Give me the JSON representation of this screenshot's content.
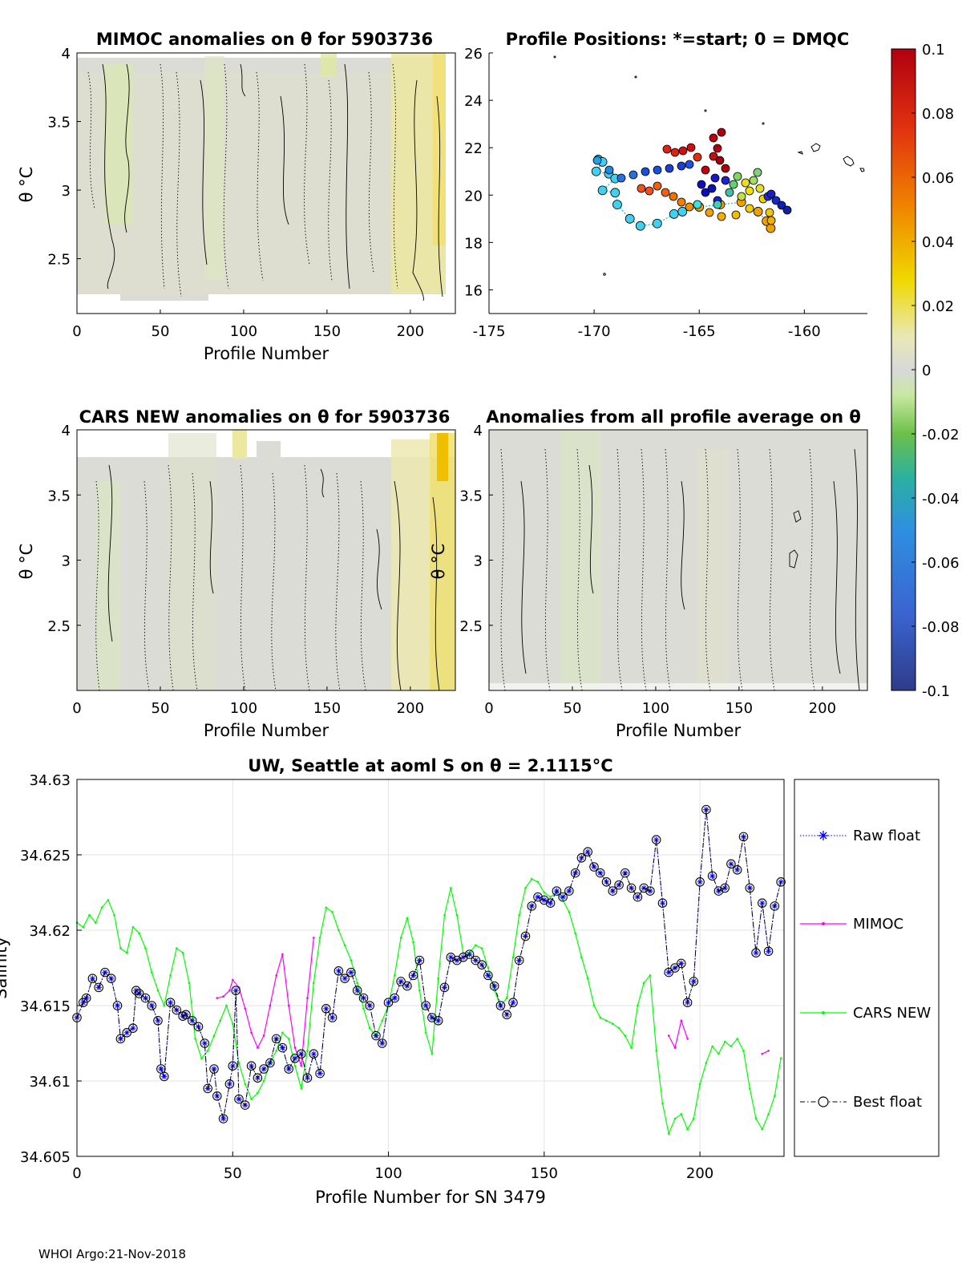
{
  "chart_data": [
    {
      "id": "mimoc",
      "type": "heatmap",
      "title": "MIMOC anomalies on θ  for 5903736",
      "xlabel": "Profile Number",
      "ylabel": "θ °C",
      "xlim": [
        0,
        227
      ],
      "ylim": [
        2.1,
        4.0
      ],
      "xticks": [
        "0",
        "50",
        "100",
        "150",
        "200"
      ],
      "yticks": [
        "2.5",
        "3",
        "3.5",
        "4"
      ]
    },
    {
      "id": "positions",
      "type": "scatter",
      "title": "Profile Positions: *=start; 0 = DMQC",
      "xlim": [
        -175,
        -157
      ],
      "ylim": [
        15,
        26
      ],
      "xticks": [
        "-175",
        "-170",
        "-165",
        "-160"
      ],
      "yticks": [
        "16",
        "18",
        "20",
        "22",
        "24",
        "26"
      ],
      "colorbar": {
        "range": [
          -0.1,
          0.1
        ],
        "ticks": [
          "0.1",
          "0.08",
          "0.06",
          "0.04",
          "0.02",
          "0",
          "-0.02",
          "-0.04",
          "-0.06",
          "-0.08",
          "-0.1"
        ]
      },
      "track": [
        [
          -169.8,
          21.5
        ],
        [
          -169.6,
          21.4
        ],
        [
          -169.9,
          21.0
        ],
        [
          -169.3,
          20.9
        ],
        [
          -169.0,
          20.7
        ],
        [
          -169.6,
          20.2
        ],
        [
          -169.0,
          20.1
        ],
        [
          -168.9,
          19.6
        ],
        [
          -168.3,
          19.0
        ],
        [
          -167.8,
          18.7
        ],
        [
          -167.0,
          18.8
        ],
        [
          -166.2,
          19.2
        ],
        [
          -165.8,
          19.3
        ],
        [
          -165.0,
          19.5
        ],
        [
          -164.0,
          19.6
        ],
        [
          -163.0,
          19.7
        ],
        [
          -162.2,
          19.3
        ],
        [
          -161.8,
          18.9
        ],
        [
          -161.6,
          18.6
        ]
      ]
    },
    {
      "id": "cars",
      "type": "heatmap",
      "title": "CARS NEW anomalies on θ for 5903736",
      "xlabel": "Profile Number",
      "ylabel": "θ °C",
      "xlim": [
        0,
        227
      ],
      "ylim": [
        2.0,
        4.0
      ],
      "xticks": [
        "0",
        "50",
        "100",
        "150",
        "200"
      ],
      "yticks": [
        "2.5",
        "3",
        "3.5",
        "4"
      ]
    },
    {
      "id": "allavg",
      "type": "heatmap",
      "title": "Anomalies from all profile average on θ",
      "xlabel": "Profile Number",
      "ylabel": "θ °C",
      "xlim": [
        0,
        227
      ],
      "ylim": [
        2.0,
        4.0
      ],
      "xticks": [
        "0",
        "50",
        "100",
        "150",
        "200"
      ],
      "yticks": [
        "2.5",
        "3",
        "3.5",
        "4"
      ]
    },
    {
      "id": "salinity",
      "type": "line",
      "title": "UW, Seattle at aoml S on θ = 2.1115°C",
      "xlabel": "Profile Number for SN 3479",
      "ylabel": "Salinity",
      "xlim": [
        0,
        227
      ],
      "ylim": [
        34.605,
        34.63
      ],
      "grid": true,
      "legend": "right",
      "xticks": [
        "0",
        "50",
        "100",
        "150",
        "200"
      ],
      "yticks": [
        "34.605",
        "34.61",
        "34.615",
        "34.62",
        "34.625",
        "34.63"
      ],
      "series": [
        {
          "name": "Raw float",
          "color": "#0000ff",
          "x": [
            0,
            2,
            3,
            5,
            7,
            9,
            11,
            13,
            14,
            16,
            18,
            19,
            20,
            22,
            24,
            26,
            27,
            28,
            30,
            32,
            34,
            35,
            37,
            39,
            41,
            42,
            44,
            45,
            47,
            49,
            50,
            51,
            52,
            54,
            56,
            58,
            60,
            62,
            64,
            66,
            68,
            70,
            72,
            74,
            76,
            78,
            80,
            82,
            84,
            86,
            88,
            90,
            92,
            94,
            96,
            98,
            100,
            102,
            104,
            106,
            108,
            110,
            112,
            114,
            116,
            118,
            120,
            122,
            124,
            126,
            128,
            130,
            132,
            134,
            136,
            138,
            140,
            142,
            144,
            146,
            148,
            150,
            152,
            154,
            156,
            158,
            160,
            162,
            164,
            166,
            168,
            170,
            172,
            174,
            176,
            178,
            180,
            182,
            184,
            186,
            188,
            190,
            192,
            194,
            196,
            198,
            200,
            202,
            204,
            206,
            208,
            210,
            212,
            214,
            216,
            218,
            220,
            222,
            224,
            226
          ],
          "y": [
            34.6142,
            34.6152,
            34.6155,
            34.6168,
            34.6162,
            34.6172,
            34.6168,
            34.615,
            34.6128,
            34.6132,
            34.6135,
            34.616,
            34.6158,
            34.6155,
            34.615,
            34.614,
            34.6108,
            34.6103,
            34.6152,
            34.6147,
            34.6143,
            34.6144,
            34.614,
            34.6136,
            34.6125,
            34.6095,
            34.6108,
            34.609,
            34.6075,
            34.6098,
            34.611,
            34.616,
            34.6088,
            34.6084,
            34.611,
            34.6102,
            34.6108,
            34.6112,
            34.6128,
            34.6122,
            34.6108,
            34.6115,
            34.6118,
            34.6102,
            34.6118,
            34.6105,
            34.6148,
            34.6142,
            34.6173,
            34.6168,
            34.6172,
            34.616,
            34.6155,
            34.615,
            34.613,
            34.6125,
            34.6152,
            34.6155,
            34.6166,
            34.6163,
            34.617,
            34.618,
            34.615,
            34.6142,
            34.614,
            34.6162,
            34.6182,
            34.618,
            34.6182,
            34.6184,
            34.618,
            34.6177,
            34.617,
            34.6163,
            34.615,
            34.6144,
            34.6152,
            34.618,
            34.6196,
            34.6216,
            34.6222,
            34.622,
            34.6218,
            34.6226,
            34.6222,
            34.6226,
            34.6238,
            34.6248,
            34.6252,
            34.6242,
            34.6238,
            34.6232,
            34.6226,
            34.623,
            34.6238,
            34.6228,
            34.6222,
            34.6228,
            34.6226,
            34.626,
            34.6218,
            34.6172,
            34.6175,
            34.6178,
            34.6152,
            34.6166,
            34.6232,
            34.628,
            34.6236,
            34.6226,
            34.6228,
            34.6244,
            34.624,
            34.6262,
            34.6228,
            34.6185,
            34.6218,
            34.6186,
            34.6216,
            34.6232
          ]
        },
        {
          "name": "MIMOC",
          "color": "#ff00ff",
          "x": [
            45,
            47,
            49,
            50,
            52,
            54,
            56,
            58,
            60,
            62,
            64,
            66,
            68,
            70,
            72,
            74,
            76,
            190,
            192,
            194,
            196,
            220,
            222
          ],
          "y": [
            34.6155,
            34.6156,
            34.616,
            34.6167,
            34.6162,
            34.6148,
            34.6132,
            34.6122,
            34.613,
            34.615,
            34.617,
            34.6184,
            34.615,
            34.6122,
            34.611,
            34.6155,
            34.6195,
            34.613,
            34.6122,
            34.614,
            34.6128,
            34.6118,
            34.612
          ]
        },
        {
          "name": "CARS NEW",
          "color": "#00ff00",
          "x": [
            0,
            2,
            4,
            6,
            8,
            10,
            12,
            14,
            16,
            18,
            20,
            22,
            24,
            26,
            28,
            30,
            32,
            34,
            36,
            38,
            40,
            42,
            44,
            46,
            48,
            50,
            52,
            54,
            56,
            58,
            60,
            62,
            64,
            66,
            68,
            70,
            72,
            74,
            76,
            78,
            80,
            82,
            84,
            86,
            88,
            90,
            92,
            94,
            96,
            98,
            100,
            102,
            104,
            106,
            108,
            110,
            112,
            114,
            116,
            118,
            120,
            122,
            124,
            126,
            128,
            130,
            132,
            134,
            136,
            138,
            140,
            142,
            144,
            146,
            148,
            150,
            152,
            154,
            156,
            158,
            160,
            162,
            164,
            166,
            168,
            170,
            172,
            174,
            176,
            178,
            180,
            182,
            184,
            186,
            188,
            190,
            192,
            194,
            196,
            198,
            200,
            202,
            204,
            206,
            208,
            210,
            212,
            214,
            216,
            218,
            220,
            222,
            224,
            226
          ],
          "y": [
            34.6205,
            34.6202,
            34.621,
            34.6205,
            34.6215,
            34.622,
            34.621,
            34.6188,
            34.6185,
            34.6202,
            34.6198,
            34.6188,
            34.6172,
            34.616,
            34.615,
            34.617,
            34.6188,
            34.6185,
            34.6165,
            34.6128,
            34.6115,
            34.612,
            34.613,
            34.614,
            34.615,
            34.6138,
            34.6112,
            34.6098,
            34.6088,
            34.6092,
            34.61,
            34.6112,
            34.612,
            34.6132,
            34.6128,
            34.611,
            34.6095,
            34.612,
            34.6165,
            34.6195,
            34.6215,
            34.6212,
            34.62,
            34.619,
            34.618,
            34.6165,
            34.6148,
            34.6135,
            34.613,
            34.614,
            34.615,
            34.617,
            34.6195,
            34.6208,
            34.6192,
            34.616,
            34.6132,
            34.6118,
            34.6168,
            34.621,
            34.6228,
            34.621,
            34.6185,
            34.6185,
            34.619,
            34.6188,
            34.6175,
            34.616,
            34.615,
            34.6155,
            34.6182,
            34.621,
            34.6228,
            34.6234,
            34.6232,
            34.6225,
            34.6222,
            34.6225,
            34.622,
            34.6212,
            34.6198,
            34.6182,
            34.6168,
            34.615,
            34.6142,
            34.614,
            34.6138,
            34.6135,
            34.613,
            34.6122,
            34.615,
            34.6165,
            34.617,
            34.612,
            34.6085,
            34.6065,
            34.6075,
            34.6078,
            34.6068,
            34.6075,
            34.6098,
            34.6112,
            34.6123,
            34.6118,
            34.6126,
            34.6123,
            34.6128,
            34.612,
            34.6095,
            34.6075,
            34.6068,
            34.6078,
            34.609,
            34.6115
          ]
        },
        {
          "name": "Best float",
          "color": "#000000",
          "x": [
            0,
            2,
            3,
            5,
            7,
            9,
            11,
            13,
            14,
            16,
            18,
            19,
            20,
            22,
            24,
            26,
            27,
            28,
            30,
            32,
            34,
            35,
            37,
            39,
            41,
            42,
            44,
            45,
            47,
            49,
            50,
            51,
            52,
            54,
            56,
            58,
            60,
            62,
            64,
            66,
            68,
            70,
            72,
            74,
            76,
            78,
            80,
            82,
            84,
            86,
            88,
            90,
            92,
            94,
            96,
            98,
            100,
            102,
            104,
            106,
            108,
            110,
            112,
            114,
            116,
            118,
            120,
            122,
            124,
            126,
            128,
            130,
            132,
            134,
            136,
            138,
            140,
            142,
            144,
            146,
            148,
            150,
            152,
            154,
            156,
            158,
            160,
            162,
            164,
            166,
            168,
            170,
            172,
            174,
            176,
            178,
            180,
            182,
            184,
            186,
            188,
            190,
            192,
            194,
            196,
            198,
            200,
            202,
            204,
            206,
            208,
            210,
            212,
            214,
            216,
            218,
            220,
            222,
            224,
            226
          ],
          "y": [
            34.6142,
            34.6152,
            34.6155,
            34.6168,
            34.6162,
            34.6172,
            34.6168,
            34.615,
            34.6128,
            34.6132,
            34.6135,
            34.616,
            34.6158,
            34.6155,
            34.615,
            34.614,
            34.6108,
            34.6103,
            34.6152,
            34.6147,
            34.6143,
            34.6144,
            34.614,
            34.6136,
            34.6125,
            34.6095,
            34.6108,
            34.609,
            34.6075,
            34.6098,
            34.611,
            34.616,
            34.6088,
            34.6084,
            34.611,
            34.6102,
            34.6108,
            34.6112,
            34.6128,
            34.6122,
            34.6108,
            34.6115,
            34.6118,
            34.6102,
            34.6118,
            34.6105,
            34.6148,
            34.6142,
            34.6173,
            34.6168,
            34.6172,
            34.616,
            34.6155,
            34.615,
            34.613,
            34.6125,
            34.6152,
            34.6155,
            34.6166,
            34.6163,
            34.617,
            34.618,
            34.615,
            34.6142,
            34.614,
            34.6162,
            34.6182,
            34.618,
            34.6182,
            34.6184,
            34.618,
            34.6177,
            34.617,
            34.6163,
            34.615,
            34.6144,
            34.6152,
            34.618,
            34.6196,
            34.6216,
            34.6222,
            34.622,
            34.6218,
            34.6226,
            34.6222,
            34.6226,
            34.6238,
            34.6248,
            34.6252,
            34.6242,
            34.6238,
            34.6232,
            34.6226,
            34.623,
            34.6238,
            34.6228,
            34.6222,
            34.6228,
            34.6226,
            34.626,
            34.6218,
            34.6172,
            34.6175,
            34.6178,
            34.6152,
            34.6166,
            34.6232,
            34.628,
            34.6236,
            34.6226,
            34.6228,
            34.6244,
            34.624,
            34.6262,
            34.6228,
            34.6185,
            34.6218,
            34.6186,
            34.6216,
            34.6232
          ]
        }
      ]
    }
  ],
  "footer": "WHOI Argo:21-Nov-2018"
}
